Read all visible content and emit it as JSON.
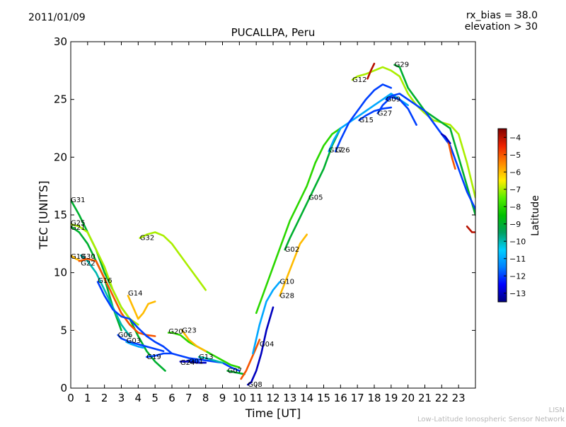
{
  "header": {
    "date": "2011/01/09",
    "bias": "rx_bias = 38.0",
    "elevation": "elevation > 30"
  },
  "footer": {
    "line1": "LISN",
    "line2": "Low-Latitude Ionospheric Sensor Network"
  },
  "colorbar": {
    "label": "Latitude",
    "min": -13.5,
    "max": -3.5,
    "ticks": [
      -4,
      -5,
      -6,
      -7,
      -8,
      -9,
      -10,
      -11,
      -12,
      -13
    ],
    "stops": [
      "#00007f",
      "#0000ff",
      "#007fff",
      "#00cfff",
      "#00a060",
      "#00c000",
      "#55ee00",
      "#ffee00",
      "#ff8800",
      "#ee2200",
      "#7f0000"
    ]
  },
  "chart_data": {
    "type": "line",
    "title": "PUCALLPA, Peru",
    "xlabel": "Time [UT]",
    "ylabel": "TEC [UNITS]",
    "xlim": [
      0,
      24
    ],
    "ylim": [
      0,
      30
    ],
    "xticks": [
      0,
      1,
      2,
      3,
      4,
      5,
      6,
      7,
      8,
      9,
      10,
      11,
      12,
      13,
      14,
      15,
      16,
      17,
      18,
      19,
      20,
      21,
      22,
      23
    ],
    "yticks": [
      0,
      5,
      10,
      15,
      20,
      25,
      30
    ],
    "series": [
      {
        "name": "G31",
        "lat": -9,
        "x": [
          0,
          0.5,
          1,
          1.5,
          2,
          2.5,
          3,
          3.5,
          4,
          4.5,
          5,
          5.6
        ],
        "y": [
          16.3,
          15.0,
          13.5,
          12.0,
          10.0,
          8.5,
          7.0,
          6.0,
          4.5,
          3.2,
          2.3,
          1.5
        ],
        "label_at": [
          0,
          16.3
        ]
      },
      {
        "name": "G25",
        "lat": -7,
        "x": [
          0,
          0.5,
          1,
          1.5,
          2,
          2.5,
          3,
          3.5,
          4
        ],
        "y": [
          14.2,
          14.0,
          13.5,
          12.0,
          10.5,
          8.5,
          7.0,
          6.0,
          5.5
        ],
        "label_at": [
          0,
          14.3
        ]
      },
      {
        "name": "G21",
        "lat": -9,
        "x": [
          0,
          0.5,
          1,
          1.5,
          2,
          2.5,
          3
        ],
        "y": [
          14.0,
          13.5,
          12.5,
          11.0,
          9.5,
          7.0,
          5.0
        ],
        "label_at": [
          0,
          13.9
        ]
      },
      {
        "name": "G18",
        "lat": -6,
        "x": [
          0,
          0.3,
          0.6
        ],
        "y": [
          11.5,
          11.2,
          11.0
        ],
        "label_at": [
          0,
          11.4
        ]
      },
      {
        "name": "G30",
        "lat": -10,
        "x": [
          0.6,
          1,
          1.5,
          2,
          2.5,
          3,
          3.5
        ],
        "y": [
          11.5,
          11.0,
          10.0,
          8.5,
          7.0,
          5.5,
          4.5
        ],
        "label_at": [
          0.6,
          11.4
        ]
      },
      {
        "name": "G22",
        "lat": -5,
        "x": [
          0.5,
          1,
          1.5,
          2,
          2.5,
          3,
          3.5,
          4,
          4.5,
          5
        ],
        "y": [
          11.0,
          11.2,
          11.0,
          9.5,
          8.0,
          6.5,
          5.5,
          4.8,
          4.6,
          4.5
        ],
        "label_at": [
          0.6,
          10.8
        ]
      },
      {
        "name": "G16",
        "lat": -12,
        "x": [
          1.6,
          2,
          2.5,
          3,
          3.5,
          4,
          4.5,
          5,
          5.5,
          6,
          6.5,
          7,
          7.5,
          8,
          8.5,
          9,
          9.5,
          10
        ],
        "y": [
          9.2,
          8.0,
          6.8,
          6.2,
          6.0,
          5.2,
          4.5,
          4.0,
          3.6,
          3.0,
          2.8,
          2.6,
          2.5,
          2.4,
          2.3,
          2.2,
          1.8,
          1.5
        ],
        "label_at": [
          1.6,
          9.3
        ]
      },
      {
        "name": "G14",
        "lat": -6,
        "x": [
          3.4,
          3.7,
          4,
          4.3,
          4.6,
          5
        ],
        "y": [
          8.0,
          7.0,
          6.0,
          6.5,
          7.3,
          7.5
        ],
        "label_at": [
          3.4,
          8.2
        ]
      },
      {
        "name": "G32",
        "lat": -7,
        "x": [
          4.1,
          4.5,
          5,
          5.5,
          6,
          6.5,
          7,
          7.5,
          8
        ],
        "y": [
          13.0,
          13.3,
          13.5,
          13.2,
          12.5,
          11.5,
          10.5,
          9.5,
          8.5
        ],
        "label_at": [
          4.1,
          13.0
        ]
      },
      {
        "name": "G06",
        "lat": -12,
        "x": [
          2.8,
          3,
          3.5,
          4,
          4.5,
          5,
          5.5
        ],
        "y": [
          4.6,
          4.3,
          4.0,
          3.8,
          3.6,
          3.4,
          3.2
        ],
        "label_at": [
          2.8,
          4.6
        ]
      },
      {
        "name": "G03",
        "lat": -11,
        "x": [
          3.3,
          3.6,
          4,
          4.3
        ],
        "y": [
          4.0,
          3.8,
          3.6,
          3.5
        ],
        "label_at": [
          3.3,
          4.1
        ]
      },
      {
        "name": "G19",
        "lat": -12,
        "x": [
          4.5,
          5,
          5.5,
          6
        ],
        "y": [
          2.7,
          2.8,
          3.0,
          3.0
        ],
        "label_at": [
          4.5,
          2.7
        ]
      },
      {
        "name": "G20",
        "lat": -8,
        "x": [
          5.8,
          6,
          6.5,
          7,
          7.5,
          8,
          8.5,
          9,
          9.5,
          10
        ],
        "y": [
          4.8,
          4.8,
          4.6,
          4.0,
          3.6,
          3.2,
          2.8,
          2.4,
          2.0,
          1.8
        ],
        "label_at": [
          5.8,
          4.9
        ]
      },
      {
        "name": "G23",
        "lat": -6,
        "x": [
          6.6,
          7,
          7.5,
          8
        ],
        "y": [
          5.0,
          4.2,
          3.6,
          3.2
        ],
        "label_at": [
          6.6,
          5.0
        ]
      },
      {
        "name": "G24",
        "lat": -13,
        "x": [
          6.5,
          7,
          7.5,
          8
        ],
        "y": [
          2.3,
          2.3,
          2.2,
          2.2
        ],
        "label_at": [
          6.5,
          2.2
        ]
      },
      {
        "name": "G01",
        "lat": -12,
        "x": [
          7,
          7.3,
          7.6
        ],
        "y": [
          2.4,
          2.4,
          2.3
        ],
        "label_at": [
          7.0,
          2.3
        ]
      },
      {
        "name": "G13",
        "lat": -10,
        "x": [
          7.6,
          8,
          8.5,
          9
        ],
        "y": [
          2.7,
          2.6,
          2.4,
          2.2
        ],
        "label_at": [
          7.6,
          2.7
        ]
      },
      {
        "name": "G07",
        "lat": -9,
        "x": [
          9.3,
          9.6,
          10,
          10.3
        ],
        "y": [
          1.5,
          1.4,
          1.3,
          1.2
        ],
        "label_at": [
          9.3,
          1.5
        ]
      },
      {
        "name": "G08",
        "lat": -13,
        "x": [
          10.5,
          10.7,
          11,
          11.3,
          11.6,
          12
        ],
        "y": [
          0.3,
          0.5,
          1.5,
          3.0,
          5.0,
          7.0
        ],
        "label_at": [
          10.5,
          0.3
        ]
      },
      {
        "name": "G04",
        "lat": -5,
        "x": [
          10.1,
          10.4,
          10.7,
          11,
          11.2
        ],
        "y": [
          0.8,
          1.5,
          2.5,
          3.5,
          4.2
        ],
        "label_at": [
          11.2,
          3.8
        ]
      },
      {
        "name": "G10",
        "lat": -11,
        "x": [
          10.8,
          11.2,
          11.6,
          12,
          12.4
        ],
        "y": [
          3.0,
          5.5,
          7.5,
          8.5,
          9.2
        ],
        "label_at": [
          12.4,
          9.2
        ]
      },
      {
        "name": "G28",
        "lat": -6,
        "x": [
          12.4,
          12.8,
          13.2,
          13.6,
          14
        ],
        "y": [
          8.0,
          9.5,
          11.0,
          12.5,
          13.3
        ],
        "label_at": [
          12.4,
          8.0
        ]
      },
      {
        "name": "G02",
        "lat": -9,
        "x": [
          12.7,
          13,
          13.5,
          14,
          14.5,
          15,
          15.5,
          16
        ],
        "y": [
          12.0,
          13.0,
          14.5,
          16.0,
          17.5,
          19.0,
          21.0,
          22.5
        ],
        "label_at": [
          12.7,
          12.0
        ]
      },
      {
        "name": "G05",
        "lat": -8,
        "x": [
          11,
          11.5,
          12,
          12.5,
          13,
          13.5,
          14,
          14.5,
          15,
          15.5,
          16
        ],
        "y": [
          6.5,
          8.5,
          10.5,
          12.5,
          14.5,
          16.0,
          17.5,
          19.5,
          21.0,
          22.0,
          22.5
        ],
        "label_at": [
          14.1,
          16.5
        ]
      },
      {
        "name": "G17",
        "lat": -11,
        "x": [
          15.3,
          15.6,
          16,
          16.5,
          17,
          17.5,
          18,
          18.5,
          19,
          19.5,
          20
        ],
        "y": [
          20.5,
          21.5,
          22.5,
          23.0,
          23.5,
          24.0,
          24.5,
          25.0,
          25.5,
          25.0,
          24.5
        ],
        "label_at": [
          15.3,
          20.6
        ]
      },
      {
        "name": "G26",
        "lat": -12,
        "x": [
          15.7,
          16,
          16.5,
          17,
          17.5,
          18,
          18.5,
          19
        ],
        "y": [
          20.5,
          21.5,
          23.0,
          24.0,
          25.0,
          25.8,
          26.3,
          26.0
        ],
        "label_at": [
          15.7,
          20.6
        ]
      },
      {
        "name": "G15",
        "lat": -12,
        "x": [
          17.1,
          17.5,
          18,
          18.5,
          19
        ],
        "y": [
          23.2,
          23.6,
          24.0,
          24.2,
          24.3
        ],
        "label_at": [
          17.1,
          23.2
        ]
      },
      {
        "name": "G27",
        "lat": -12,
        "x": [
          18.2,
          18.5,
          19,
          19.5,
          20,
          20.5
        ],
        "y": [
          23.8,
          24.5,
          25.2,
          25.0,
          24.2,
          22.8
        ],
        "label_at": [
          18.2,
          23.8
        ]
      },
      {
        "name": "G12",
        "lat": -7,
        "x": [
          16.7,
          17,
          17.5,
          18,
          18.5,
          19,
          19.5,
          20,
          20.5,
          21,
          21.5,
          22,
          22.5,
          23,
          23.5,
          24
        ],
        "y": [
          26.7,
          27.0,
          27.2,
          27.5,
          27.8,
          27.5,
          27.0,
          25.5,
          24.5,
          23.8,
          23.2,
          23.0,
          22.8,
          22.0,
          19.5,
          16.5
        ],
        "label_at": [
          16.7,
          26.7
        ]
      },
      {
        "name": "G29",
        "lat": -9,
        "x": [
          19.2,
          19.5,
          20,
          20.5,
          21,
          21.5,
          22,
          22.5,
          23,
          23.5,
          24
        ],
        "y": [
          28.0,
          27.8,
          26.0,
          25.0,
          24.0,
          23.5,
          23.0,
          22.5,
          20.0,
          17.5,
          15.0
        ],
        "label_at": [
          19.2,
          28.0
        ]
      },
      {
        "name": "G09",
        "lat": -12,
        "x": [
          18.7,
          19,
          19.5,
          20,
          20.5,
          21,
          21.5,
          22,
          22.5,
          23,
          23.5,
          24
        ],
        "y": [
          25.0,
          25.3,
          25.5,
          25.0,
          24.5,
          24.0,
          23.0,
          22.0,
          21.0,
          19.0,
          17.0,
          15.5
        ],
        "label_at": [
          18.7,
          25.0
        ]
      }
    ],
    "extra_segments": [
      {
        "lat": -4,
        "x": [
          23.5,
          23.8,
          24
        ],
        "y": [
          14.0,
          13.5,
          13.5
        ]
      },
      {
        "lat": -5,
        "x": [
          22.4,
          22.6,
          22.8
        ],
        "y": [
          21.3,
          20.0,
          19.0
        ]
      },
      {
        "lat": -4,
        "x": [
          17.6,
          17.8,
          18.0
        ],
        "y": [
          26.8,
          27.5,
          28.1
        ]
      },
      {
        "lat": -13,
        "x": [
          22,
          22.2,
          22.5
        ],
        "y": [
          22.0,
          21.8,
          21.2
        ]
      }
    ]
  }
}
